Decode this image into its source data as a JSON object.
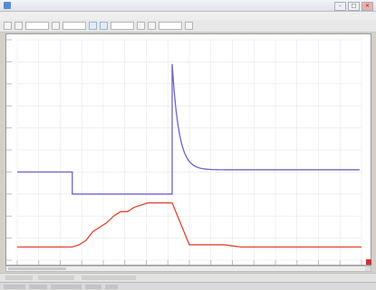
{
  "window": {
    "title": "",
    "minimize": "–",
    "maximize": "□",
    "close": "×"
  },
  "menu": {
    "items": [
      "",
      "",
      "",
      "",
      "",
      "",
      ""
    ]
  },
  "colors": {
    "series_blue": "#7063c8",
    "series_red": "#e2452e",
    "gridline": "#e6e6e6",
    "plot_bg": "#ffffff"
  },
  "icons": {
    "open": "folder-icon",
    "save": "save-icon",
    "zoom_in": "zoom-in-icon",
    "zoom_out": "zoom-out-icon",
    "cursor": "cursor-icon"
  },
  "chart_data": {
    "type": "line",
    "x": [
      0,
      2,
      4,
      6,
      8,
      10,
      12,
      14,
      16,
      18,
      20,
      22,
      24,
      26,
      28,
      30,
      32,
      34,
      36,
      38,
      40,
      45,
      50,
      55,
      60,
      65,
      70,
      75,
      80,
      85,
      90,
      100
    ],
    "xlim": [
      0,
      100
    ],
    "ylim": [
      0,
      100
    ],
    "grid": true,
    "legend": "none",
    "series": [
      {
        "values": [
          40,
          40,
          40,
          40,
          40,
          40,
          40,
          40,
          30,
          30,
          30,
          30,
          30,
          30,
          30,
          30,
          30,
          30,
          30,
          30,
          30,
          30,
          30,
          30,
          30,
          30,
          30,
          30,
          30,
          30,
          30,
          30
        ],
        "spike": {
          "x": 45,
          "peak": 89,
          "settle": 41
        }
      },
      {
        "values": [
          6,
          6,
          6,
          6,
          6,
          6,
          6,
          6,
          6,
          7,
          9,
          13,
          15,
          17,
          20,
          22,
          22,
          24,
          25,
          26,
          26,
          26,
          7,
          7,
          7,
          6,
          6,
          6,
          6,
          6,
          6,
          6
        ]
      }
    ]
  }
}
